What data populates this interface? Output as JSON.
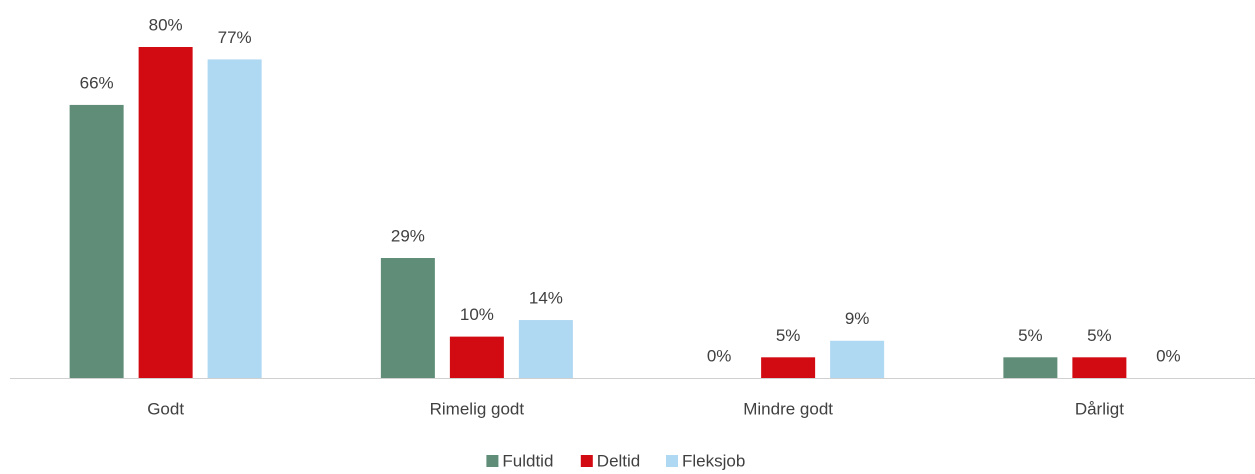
{
  "chart_data": {
    "type": "bar",
    "categories": [
      "Godt",
      "Rimelig godt",
      "Mindre godt",
      "Dårligt"
    ],
    "series": [
      {
        "name": "Fuldtid",
        "color": "#5f8d78",
        "values": [
          66,
          29,
          0,
          5
        ],
        "value_labels": [
          "66%",
          "29%",
          "0%",
          "5%"
        ]
      },
      {
        "name": "Deltid",
        "color": "#d20a11",
        "values": [
          80,
          10,
          5,
          5
        ],
        "value_labels": [
          "80%",
          "10%",
          "5%",
          "5%"
        ]
      },
      {
        "name": "Fleksjob",
        "color": "#afd8f2",
        "values": [
          77,
          14,
          9,
          0
        ],
        "value_labels": [
          "77%",
          "14%",
          "9%",
          "0%"
        ]
      }
    ],
    "legend": "bottom"
  }
}
